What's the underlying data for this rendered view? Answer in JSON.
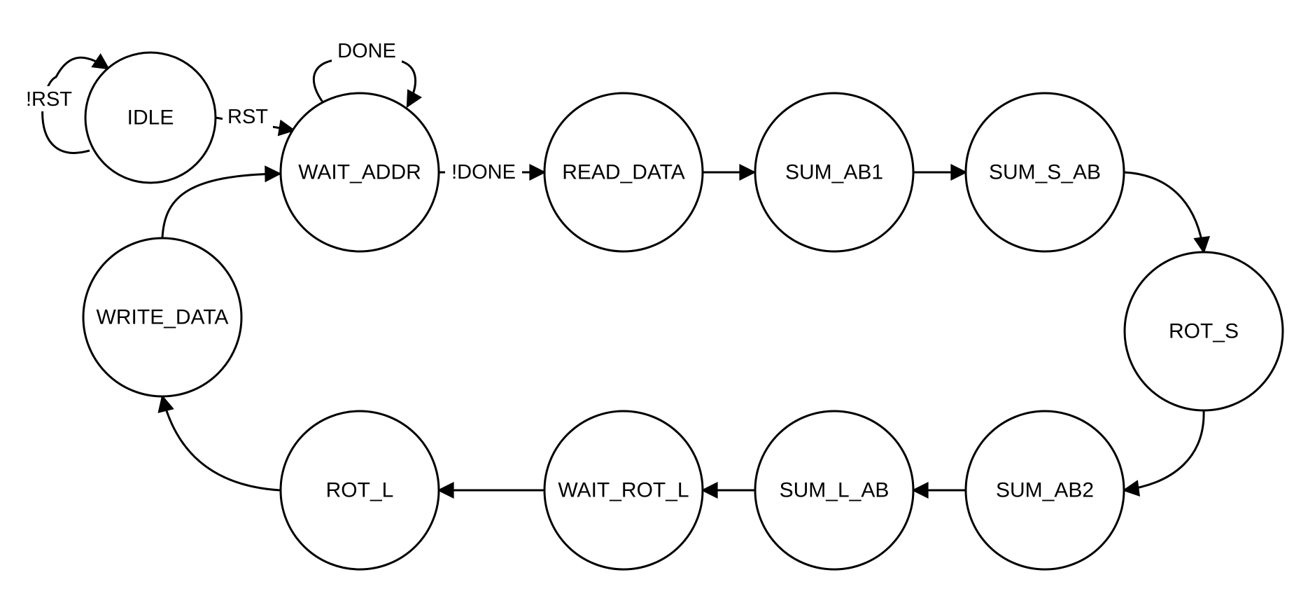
{
  "states": {
    "idle": "IDLE",
    "wait_addr": "WAIT_ADDR",
    "read_data": "READ_DATA",
    "sum_ab1": "SUM_AB1",
    "sum_s_ab": "SUM_S_AB",
    "rot_s": "ROT_S",
    "sum_ab2": "SUM_AB2",
    "sum_l_ab": "SUM_L_AB",
    "wait_rot_l": "WAIT_ROT_L",
    "rot_l": "ROT_L",
    "write_data": "WRITE_DATA"
  },
  "transitions": {
    "idle_self": "!RST",
    "idle_to_wait_addr": "RST",
    "wait_addr_self": "DONE",
    "wait_addr_to_read_data": "!DONE"
  },
  "colors": {
    "stroke": "#000000",
    "background": "#ffffff"
  }
}
